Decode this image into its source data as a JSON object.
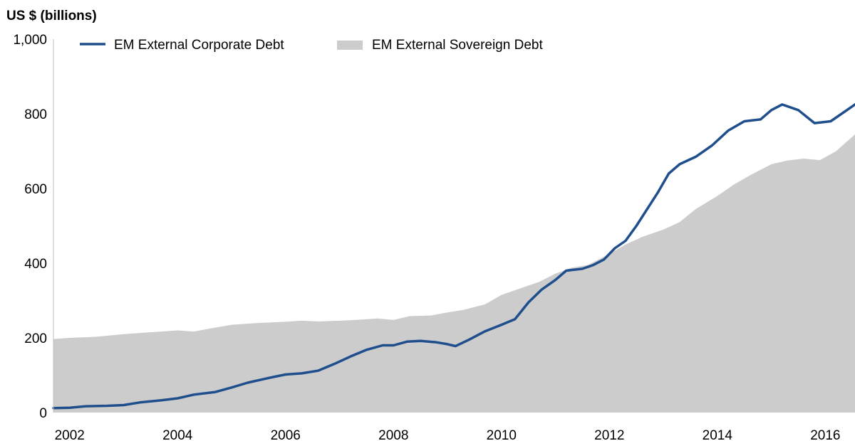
{
  "chart_data": {
    "type": "area",
    "title": "",
    "ylabel": "US $ (billions)",
    "xlabel": "",
    "ylim": [
      0,
      1000
    ],
    "xlim": [
      2001.7,
      2016.55
    ],
    "yticks": [
      0,
      200,
      400,
      600,
      800,
      1000
    ],
    "ytick_labels": [
      "0",
      "200",
      "400",
      "600",
      "800",
      "1,000"
    ],
    "xticks": [
      2002,
      2004,
      2006,
      2008,
      2010,
      2012,
      2014,
      2016
    ],
    "xtick_labels": [
      "2002",
      "2004",
      "2006",
      "2008",
      "2010",
      "2012",
      "2014",
      "2016"
    ],
    "legend": "top",
    "grid": false,
    "series": [
      {
        "name": "EM External Sovereign Debt",
        "kind": "area",
        "color": "#cccccc",
        "x": [
          2001.7,
          2002.0,
          2002.5,
          2003.0,
          2003.5,
          2004.0,
          2004.3,
          2004.6,
          2005.0,
          2005.5,
          2006.0,
          2006.3,
          2006.6,
          2007.0,
          2007.3,
          2007.7,
          2008.0,
          2008.3,
          2008.7,
          2009.0,
          2009.3,
          2009.7,
          2010.0,
          2010.3,
          2010.7,
          2011.0,
          2011.3,
          2011.6,
          2012.0,
          2012.3,
          2012.6,
          2013.0,
          2013.3,
          2013.6,
          2014.0,
          2014.3,
          2014.6,
          2015.0,
          2015.3,
          2015.6,
          2015.9,
          2016.2,
          2016.55
        ],
        "values": [
          197,
          200,
          203,
          210,
          215,
          220,
          217,
          225,
          235,
          240,
          243,
          246,
          244,
          246,
          248,
          252,
          248,
          258,
          260,
          268,
          275,
          290,
          315,
          330,
          350,
          372,
          388,
          395,
          425,
          450,
          470,
          490,
          510,
          545,
          580,
          610,
          635,
          665,
          675,
          680,
          676,
          700,
          745
        ]
      },
      {
        "name": "EM External Corporate Debt",
        "kind": "line",
        "color": "#1f4e8c",
        "x": [
          2001.7,
          2002.0,
          2002.3,
          2002.7,
          2003.0,
          2003.3,
          2003.7,
          2004.0,
          2004.3,
          2004.7,
          2005.0,
          2005.3,
          2005.7,
          2006.0,
          2006.3,
          2006.6,
          2006.9,
          2007.2,
          2007.5,
          2007.8,
          2008.0,
          2008.25,
          2008.5,
          2008.8,
          2009.0,
          2009.15,
          2009.4,
          2009.7,
          2010.0,
          2010.25,
          2010.5,
          2010.75,
          2011.0,
          2011.2,
          2011.5,
          2011.7,
          2011.9,
          2012.1,
          2012.3,
          2012.5,
          2012.7,
          2012.9,
          2013.1,
          2013.3,
          2013.6,
          2013.9,
          2014.2,
          2014.5,
          2014.8,
          2015.0,
          2015.2,
          2015.5,
          2015.8,
          2016.1,
          2016.3,
          2016.55
        ],
        "values": [
          12,
          13,
          17,
          18,
          20,
          27,
          33,
          38,
          48,
          55,
          67,
          80,
          93,
          102,
          105,
          112,
          130,
          150,
          168,
          180,
          180,
          190,
          192,
          188,
          183,
          178,
          195,
          218,
          235,
          250,
          295,
          330,
          355,
          380,
          385,
          395,
          410,
          440,
          460,
          500,
          545,
          590,
          640,
          665,
          685,
          715,
          755,
          780,
          785,
          810,
          825,
          810,
          775,
          780,
          800,
          825
        ]
      }
    ]
  }
}
